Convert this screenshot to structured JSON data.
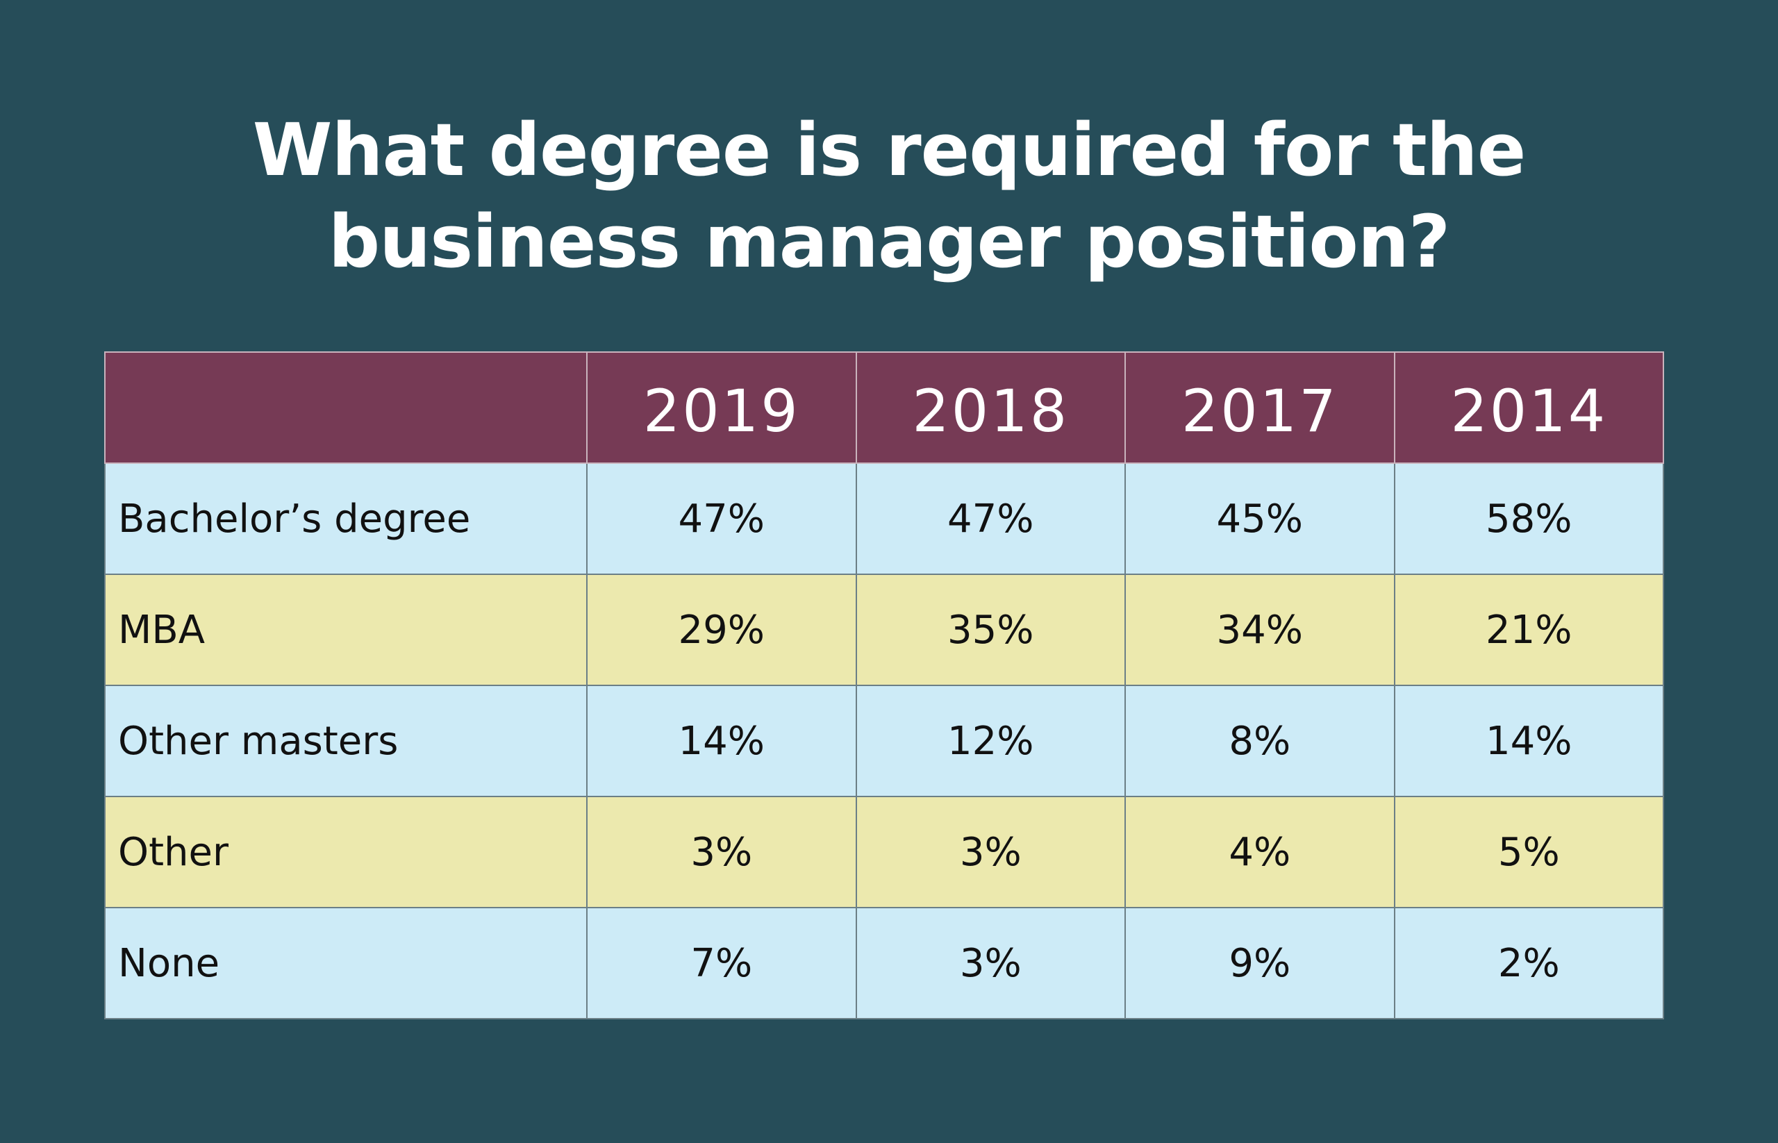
{
  "title_lines": [
    "What degree is required for the",
    "business manager position?"
  ],
  "table": {
    "columns": [
      "2019",
      "2018",
      "2017",
      "2014"
    ],
    "rows": [
      {
        "label": "Bachelor’s degree",
        "cells": [
          "47%",
          "47%",
          "45%",
          "58%"
        ]
      },
      {
        "label": "MBA",
        "cells": [
          "29%",
          "35%",
          "34%",
          "21%"
        ]
      },
      {
        "label": "Other masters",
        "cells": [
          "14%",
          "12%",
          "8%",
          "14%"
        ]
      },
      {
        "label": "Other",
        "cells": [
          "3%",
          "3%",
          "4%",
          "5%"
        ]
      },
      {
        "label": "None",
        "cells": [
          "7%",
          "3%",
          "9%",
          "2%"
        ]
      }
    ]
  }
}
